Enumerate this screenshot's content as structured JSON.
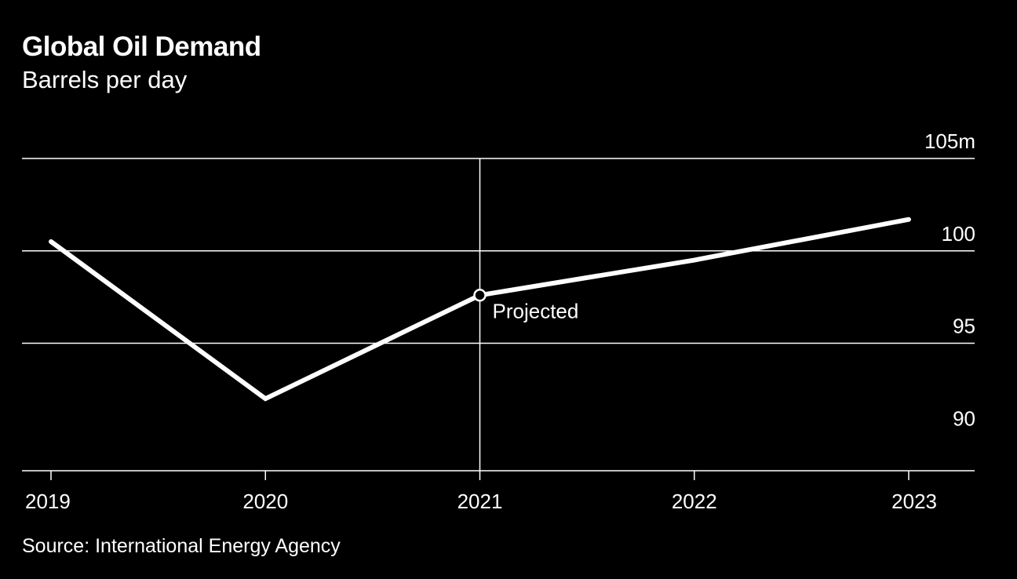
{
  "title": "Global Oil Demand",
  "subtitle": "Barrels per day",
  "source": "Source: International Energy Agency",
  "colors": {
    "background": "#000000",
    "foreground": "#ffffff"
  },
  "chart_data": {
    "type": "line",
    "title": "Global Oil Demand",
    "subtitle": "Barrels per day",
    "xlabel": "",
    "ylabel": "Barrels per day",
    "x": [
      2019,
      2020,
      2021,
      2022,
      2023
    ],
    "x_tick_labels": [
      "2019",
      "2020",
      "2021",
      "2022",
      "2023"
    ],
    "series": [
      {
        "name": "Global Oil Demand",
        "values": [
          100.5,
          92.0,
          97.6,
          99.5,
          101.7
        ]
      }
    ],
    "ylim": [
      88.1,
      105
    ],
    "y_ticks": [
      90,
      95,
      100,
      105
    ],
    "y_tick_labels": [
      "90",
      "95",
      "100",
      "105m"
    ],
    "grid": true,
    "y_axis_side": "right",
    "annotation": {
      "x": 2021,
      "y": 97.6,
      "label": "Projected",
      "marker": "open-circle",
      "reference_line": "vertical"
    }
  }
}
